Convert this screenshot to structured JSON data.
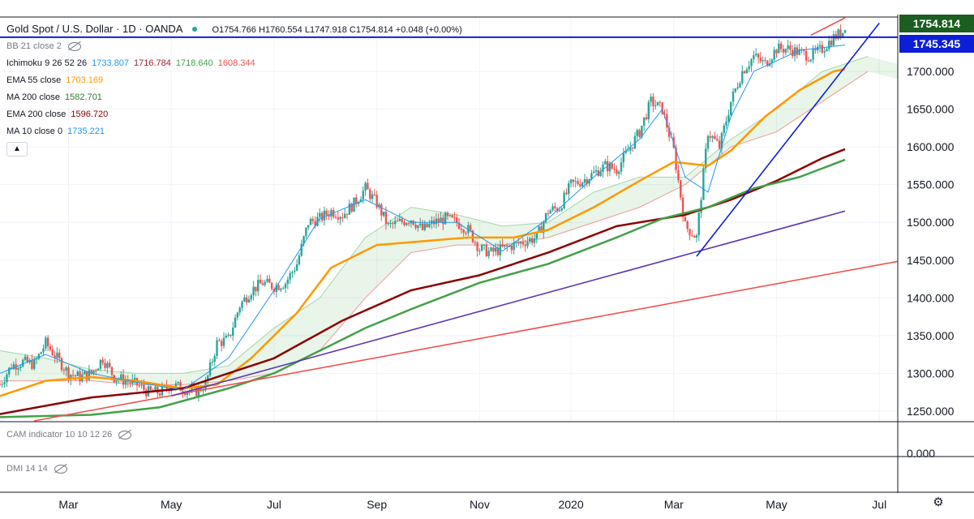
{
  "header": {
    "title": "Gold Spot / U.S. Dollar · 1D · OANDA",
    "open": "O1754.766",
    "high": "H1760.554",
    "low": "L1747.918",
    "close": "C1754.814",
    "change": "+0.048 (+0.00%)"
  },
  "indicators": [
    {
      "label": "BB 21 close 2",
      "values": [],
      "hidden": true
    },
    {
      "label": "Ichimoku 9 26 52 26",
      "values": [
        {
          "v": "1733.807",
          "color": "#2196f3"
        },
        {
          "v": "1716.784",
          "color": "#a31c2e"
        },
        {
          "v": "1718.640",
          "color": "#43a047"
        },
        {
          "v": "1608.344",
          "color": "#ef5350"
        }
      ]
    },
    {
      "label": "EMA 55 close",
      "values": [
        {
          "v": "1703.169",
          "color": "#ff9800"
        }
      ]
    },
    {
      "label": "MA 200 close",
      "values": [
        {
          "v": "1582.701",
          "color": "#2e7d32"
        }
      ]
    },
    {
      "label": "EMA 200 close",
      "values": [
        {
          "v": "1596.720",
          "color": "#8b0000"
        }
      ]
    },
    {
      "label": "MA 10 close 0",
      "values": [
        {
          "v": "1735.221",
          "color": "#2196f3"
        }
      ]
    }
  ],
  "subpanes": [
    {
      "label": "CAM indicator 10 10 12 26"
    },
    {
      "label": "DMI 14 14"
    }
  ],
  "cam_axis_label": "0.000",
  "price_tags": [
    {
      "label": "1754.814",
      "value": 1754.814,
      "color": "#1b5e20"
    },
    {
      "label": "1745.345",
      "value": 1745.345,
      "color": "#0d1fd6"
    }
  ],
  "chart_data": {
    "type": "candlestick",
    "title": "Gold Spot / U.S. Dollar",
    "x_tick_labels": [
      "Mar",
      "May",
      "Jul",
      "Sep",
      "Nov",
      "2020",
      "Mar",
      "May",
      "Jul"
    ],
    "y_tick_labels": [
      "1250.000",
      "1300.000",
      "1350.000",
      "1400.000",
      "1450.000",
      "1500.000",
      "1550.000",
      "1600.000",
      "1650.000",
      "1700.000"
    ],
    "ylim": [
      1237,
      1771
    ],
    "x_range_weeks": [
      0,
      74
    ],
    "month_tick_weeks": [
      6,
      15,
      24,
      33,
      42,
      50,
      59,
      68,
      77
    ],
    "horizontal_line": 1745.345,
    "price_anchor_close": [
      [
        0,
        1285
      ],
      [
        1,
        1310
      ],
      [
        2,
        1315
      ],
      [
        3,
        1312
      ],
      [
        4,
        1340
      ],
      [
        5,
        1320
      ],
      [
        6,
        1300
      ],
      [
        7,
        1295
      ],
      [
        8,
        1300
      ],
      [
        9,
        1320
      ],
      [
        10,
        1295
      ],
      [
        11,
        1290
      ],
      [
        12,
        1285
      ],
      [
        13,
        1275
      ],
      [
        14,
        1275
      ],
      [
        15,
        1285
      ],
      [
        16,
        1280
      ],
      [
        17,
        1275
      ],
      [
        18,
        1285
      ],
      [
        19,
        1340
      ],
      [
        20,
        1345
      ],
      [
        21,
        1390
      ],
      [
        22,
        1410
      ],
      [
        23,
        1420
      ],
      [
        24,
        1415
      ],
      [
        25,
        1420
      ],
      [
        26,
        1445
      ],
      [
        27,
        1500
      ],
      [
        28,
        1505
      ],
      [
        29,
        1515
      ],
      [
        30,
        1510
      ],
      [
        31,
        1525
      ],
      [
        32,
        1545
      ],
      [
        33,
        1525
      ],
      [
        34,
        1495
      ],
      [
        35,
        1500
      ],
      [
        36,
        1505
      ],
      [
        37,
        1490
      ],
      [
        38,
        1500
      ],
      [
        39,
        1505
      ],
      [
        40,
        1500
      ],
      [
        41,
        1490
      ],
      [
        42,
        1465
      ],
      [
        43,
        1460
      ],
      [
        44,
        1465
      ],
      [
        45,
        1470
      ],
      [
        46,
        1475
      ],
      [
        47,
        1480
      ],
      [
        48,
        1515
      ],
      [
        49,
        1520
      ],
      [
        50,
        1550
      ],
      [
        51,
        1555
      ],
      [
        52,
        1565
      ],
      [
        53,
        1575
      ],
      [
        54,
        1570
      ],
      [
        55,
        1595
      ],
      [
        56,
        1620
      ],
      [
        57,
        1660
      ],
      [
        58,
        1650
      ],
      [
        59,
        1595
      ],
      [
        60,
        1495
      ],
      [
        61,
        1480
      ],
      [
        62,
        1620
      ],
      [
        63,
        1600
      ],
      [
        64,
        1660
      ],
      [
        65,
        1700
      ],
      [
        66,
        1720
      ],
      [
        67,
        1710
      ],
      [
        68,
        1730
      ],
      [
        69,
        1730
      ],
      [
        70,
        1725
      ],
      [
        71,
        1720
      ],
      [
        72,
        1730
      ],
      [
        73,
        1745
      ],
      [
        74,
        1754.8
      ]
    ],
    "series": [
      {
        "name": "EMA 55",
        "color": "#ff9800",
        "points": [
          [
            0,
            1270
          ],
          [
            4,
            1290
          ],
          [
            8,
            1295
          ],
          [
            12,
            1290
          ],
          [
            16,
            1280
          ],
          [
            19,
            1285
          ],
          [
            22,
            1320
          ],
          [
            26,
            1380
          ],
          [
            29,
            1440
          ],
          [
            33,
            1470
          ],
          [
            37,
            1475
          ],
          [
            41,
            1480
          ],
          [
            45,
            1480
          ],
          [
            48,
            1490
          ],
          [
            52,
            1520
          ],
          [
            56,
            1555
          ],
          [
            59,
            1580
          ],
          [
            62,
            1575
          ],
          [
            64,
            1595
          ],
          [
            67,
            1640
          ],
          [
            70,
            1675
          ],
          [
            73,
            1700
          ],
          [
            74,
            1703
          ]
        ]
      },
      {
        "name": "EMA 200",
        "color": "#8b0000",
        "points": [
          [
            0,
            1246
          ],
          [
            8,
            1268
          ],
          [
            16,
            1280
          ],
          [
            24,
            1320
          ],
          [
            30,
            1370
          ],
          [
            36,
            1410
          ],
          [
            42,
            1430
          ],
          [
            48,
            1460
          ],
          [
            54,
            1495
          ],
          [
            60,
            1510
          ],
          [
            64,
            1530
          ],
          [
            68,
            1555
          ],
          [
            72,
            1585
          ],
          [
            74,
            1597
          ]
        ]
      },
      {
        "name": "MA 200",
        "color": "#43a047",
        "points": [
          [
            0,
            1242
          ],
          [
            8,
            1245
          ],
          [
            14,
            1255
          ],
          [
            20,
            1280
          ],
          [
            24,
            1300
          ],
          [
            28,
            1330
          ],
          [
            32,
            1360
          ],
          [
            36,
            1385
          ],
          [
            42,
            1420
          ],
          [
            48,
            1445
          ],
          [
            54,
            1480
          ],
          [
            58,
            1505
          ],
          [
            62,
            1520
          ],
          [
            66,
            1545
          ],
          [
            70,
            1560
          ],
          [
            74,
            1583
          ]
        ]
      },
      {
        "name": "MA 10",
        "color": "#2196f3",
        "points": [
          [
            0,
            1300
          ],
          [
            4,
            1325
          ],
          [
            8,
            1300
          ],
          [
            12,
            1288
          ],
          [
            16,
            1278
          ],
          [
            20,
            1320
          ],
          [
            24,
            1410
          ],
          [
            28,
            1505
          ],
          [
            32,
            1530
          ],
          [
            36,
            1500
          ],
          [
            40,
            1500
          ],
          [
            44,
            1462
          ],
          [
            48,
            1505
          ],
          [
            52,
            1560
          ],
          [
            56,
            1610
          ],
          [
            58,
            1650
          ],
          [
            60,
            1560
          ],
          [
            62,
            1540
          ],
          [
            64,
            1640
          ],
          [
            66,
            1700
          ],
          [
            70,
            1728
          ],
          [
            74,
            1735
          ]
        ]
      }
    ],
    "trendlines": [
      {
        "name": "long-term red support",
        "color": "#ef5350",
        "from": [
          3,
          1237
        ],
        "to": [
          81,
          1455
        ]
      },
      {
        "name": "purple support",
        "color": "#5e35b1",
        "from": [
          15,
          1270
        ],
        "to": [
          74,
          1515
        ]
      },
      {
        "name": "navy trendline",
        "color": "#0d1fd6",
        "from": [
          61,
          1455
        ],
        "to": [
          77,
          1764
        ]
      },
      {
        "name": "red channel line",
        "color": "#ef5350",
        "from": [
          71,
          1748
        ],
        "to": [
          74,
          1771
        ]
      }
    ],
    "cloud": [
      [
        0,
        1330,
        1290
      ],
      [
        4,
        1320,
        1290
      ],
      [
        8,
        1305,
        1290
      ],
      [
        12,
        1300,
        1285
      ],
      [
        16,
        1300,
        1285
      ],
      [
        20,
        1310,
        1290
      ],
      [
        24,
        1360,
        1300
      ],
      [
        28,
        1400,
        1330
      ],
      [
        32,
        1480,
        1400
      ],
      [
        36,
        1520,
        1460
      ],
      [
        40,
        1510,
        1470
      ],
      [
        44,
        1495,
        1470
      ],
      [
        48,
        1500,
        1480
      ],
      [
        52,
        1540,
        1500
      ],
      [
        56,
        1560,
        1520
      ],
      [
        60,
        1560,
        1550
      ],
      [
        64,
        1610,
        1600
      ],
      [
        68,
        1650,
        1620
      ],
      [
        72,
        1700,
        1660
      ],
      [
        76,
        1720,
        1700
      ],
      [
        80,
        1710,
        1690
      ]
    ]
  }
}
